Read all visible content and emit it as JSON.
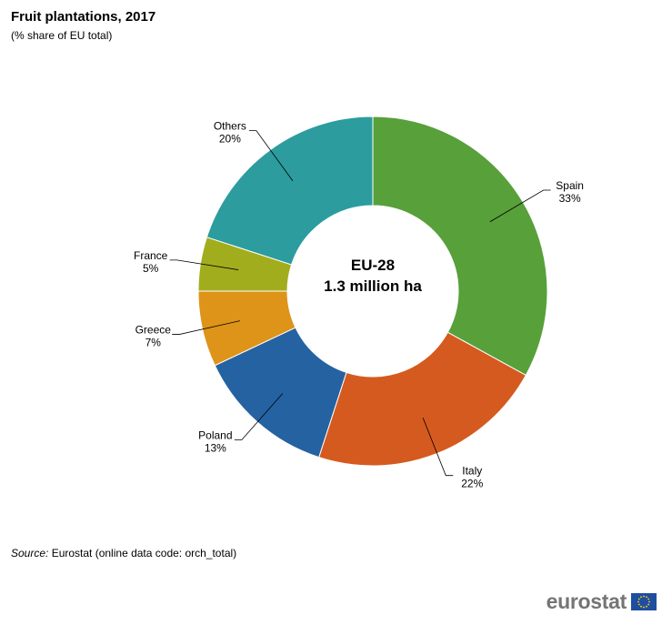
{
  "header": {
    "title": "Fruit plantations, 2017",
    "subtitle": "(% share of EU total)"
  },
  "center_label": {
    "line1": "EU-28",
    "line2": "1.3 million ha"
  },
  "source": {
    "label": "Source:",
    "text": " Eurostat (online data code: orch_total)"
  },
  "logo": {
    "text": "eurostat",
    "flag_icon": "eu-flag-icon"
  },
  "chart_data": {
    "type": "pie",
    "title": "Fruit plantations, 2017",
    "subtitle": "(% share of EU total)",
    "center_text": [
      "EU-28",
      "1.3 million ha"
    ],
    "slices": [
      {
        "label": "Spain",
        "value": 33,
        "display": "33%",
        "color": "#57A03A"
      },
      {
        "label": "Italy",
        "value": 22,
        "display": "22%",
        "color": "#D55A1F"
      },
      {
        "label": "Poland",
        "value": 13,
        "display": "13%",
        "color": "#2562A1"
      },
      {
        "label": "Greece",
        "value": 7,
        "display": "7%",
        "color": "#DD9419"
      },
      {
        "label": "France",
        "value": 5,
        "display": "5%",
        "color": "#A2AD1D"
      },
      {
        "label": "Others",
        "value": 20,
        "display": "20%",
        "color": "#2C9C9E"
      }
    ]
  }
}
